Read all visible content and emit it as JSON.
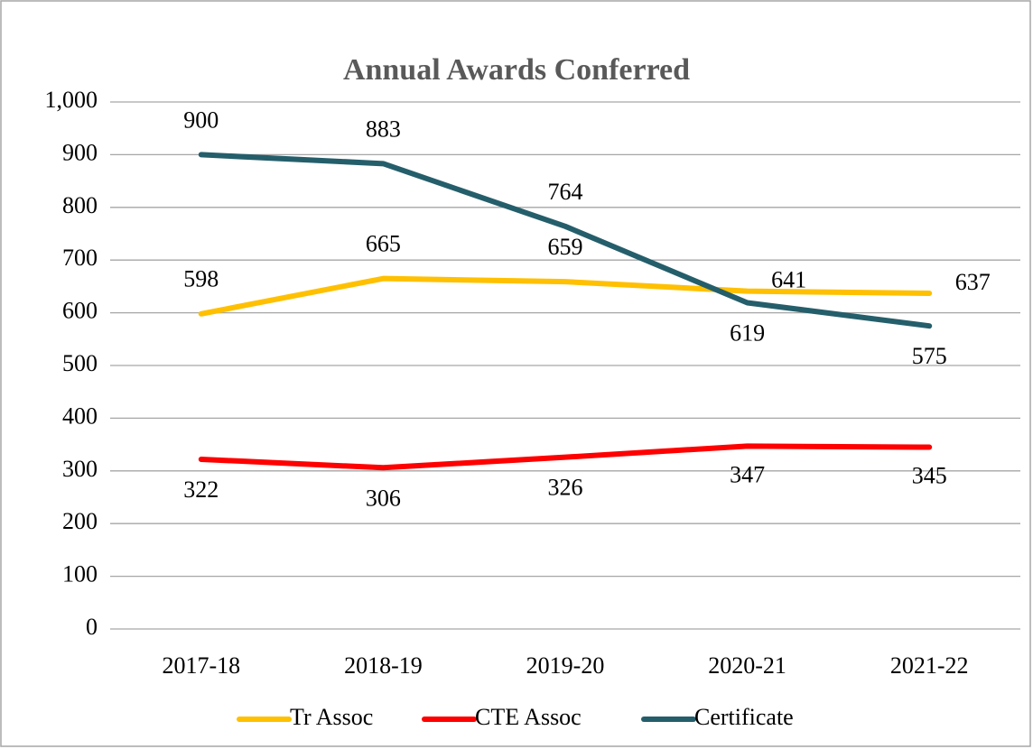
{
  "chart_data": {
    "type": "line",
    "title": "Annual Awards Conferred",
    "categories": [
      "2017-18",
      "2018-19",
      "2019-20",
      "2020-21",
      "2021-22"
    ],
    "series": [
      {
        "name": "Tr Assoc",
        "color": "#ffc000",
        "values": [
          598,
          665,
          659,
          641,
          637
        ]
      },
      {
        "name": "CTE Assoc",
        "color": "#ff0000",
        "values": [
          322,
          306,
          326,
          347,
          345
        ]
      },
      {
        "name": "Certificate",
        "color": "#255e6b",
        "values": [
          900,
          883,
          764,
          619,
          575
        ]
      }
    ],
    "ylim": [
      0,
      1000
    ],
    "yticks": [
      0,
      100,
      200,
      300,
      400,
      500,
      600,
      700,
      800,
      900,
      {
        "value": 1000,
        "label": "1,000"
      }
    ],
    "grid": true,
    "legend": "bottom"
  }
}
